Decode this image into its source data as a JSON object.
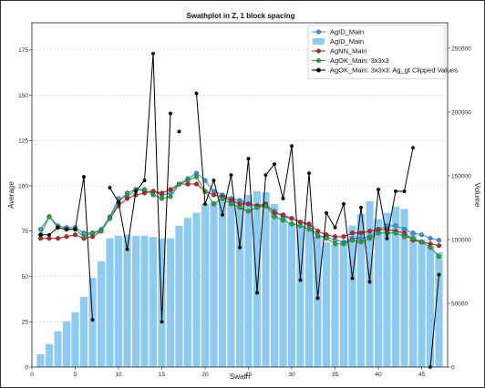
{
  "chart_data": {
    "type": "line",
    "title": "Swathplot in Z, 1 block spacing",
    "xlabel": "Swath",
    "ylabel": "Average",
    "y2label": "Volume",
    "xlim": [
      0,
      48
    ],
    "ylim": [
      0,
      190
    ],
    "y2lim": [
      0,
      270000
    ],
    "x_ticks": [
      0,
      5,
      10,
      15,
      20,
      25,
      30,
      35,
      40,
      45
    ],
    "y_ticks": [
      0,
      25,
      50,
      75,
      100,
      125,
      150,
      175
    ],
    "y2_ticks": [
      0,
      50000,
      100000,
      150000,
      200000,
      250000
    ],
    "grid": true,
    "legend_position": "top-right",
    "colors": {
      "agid_main": "#3b93d8",
      "agid_volume": "#8ecbf2",
      "agnn_main": "#b22b2b",
      "agok_main": "#2e9e3b",
      "agok_clipped": "#000000"
    },
    "series": [
      {
        "name": "AgID_Main",
        "kind": "line",
        "color": "#3b93d8",
        "x": [
          1,
          2,
          3,
          4,
          5,
          6,
          7,
          8,
          9,
          10,
          11,
          12,
          13,
          14,
          15,
          16,
          17,
          18,
          19,
          20,
          21,
          22,
          23,
          24,
          25,
          26,
          27,
          28,
          29,
          30,
          31,
          32,
          33,
          34,
          35,
          36,
          37,
          38,
          39,
          40,
          41,
          42,
          43,
          44,
          45,
          46,
          47
        ],
        "values": [
          76,
          83,
          78,
          77,
          77,
          74,
          74,
          76,
          83,
          93,
          94,
          98,
          97,
          97,
          95,
          96,
          101,
          104,
          107,
          103,
          97,
          95,
          93,
          92,
          90,
          89,
          89,
          86,
          83,
          82,
          80,
          78,
          72,
          72,
          70,
          69,
          71,
          71,
          72,
          76,
          78,
          78,
          76,
          74,
          73,
          71,
          70
        ]
      },
      {
        "name": "AgID_Main",
        "kind": "bar",
        "axis": "y2",
        "color": "#8ecbf2",
        "x": [
          1,
          2,
          3,
          4,
          5,
          6,
          7,
          8,
          9,
          10,
          11,
          12,
          13,
          14,
          15,
          16,
          17,
          18,
          19,
          20,
          21,
          22,
          23,
          24,
          25,
          26,
          27,
          28,
          29,
          30,
          31,
          32,
          33,
          34,
          35,
          36,
          37,
          38,
          39,
          40,
          41,
          42,
          43,
          44,
          45,
          46,
          47
        ],
        "values": [
          10000,
          18000,
          28000,
          36000,
          43000,
          55000,
          70000,
          83000,
          101000,
          103000,
          104000,
          103000,
          103000,
          102000,
          101000,
          101000,
          111000,
          117000,
          121000,
          128000,
          130000,
          135000,
          132000,
          131000,
          135000,
          138000,
          137000,
          128000,
          118000,
          113000,
          111000,
          108000,
          102000,
          98000,
          96000,
          99000,
          111000,
          120000,
          130000,
          116000,
          121000,
          126000,
          124000,
          105000,
          100000,
          95000,
          90000
        ]
      },
      {
        "name": "AgNN_Main",
        "kind": "line",
        "color": "#b22b2b",
        "x": [
          1,
          2,
          3,
          4,
          5,
          6,
          7,
          8,
          9,
          10,
          11,
          12,
          13,
          14,
          15,
          16,
          17,
          18,
          19,
          20,
          21,
          22,
          23,
          24,
          25,
          26,
          27,
          28,
          29,
          30,
          31,
          32,
          33,
          34,
          35,
          36,
          37,
          38,
          39,
          40,
          41,
          42,
          43,
          44,
          45,
          46,
          47
        ],
        "values": [
          71,
          71,
          71,
          72,
          73,
          71,
          72,
          75,
          82,
          89,
          93,
          95,
          96,
          97,
          96,
          98,
          101,
          101,
          101,
          97,
          95,
          94,
          92,
          90,
          90,
          89,
          90,
          85,
          84,
          82,
          80,
          79,
          75,
          73,
          72,
          72,
          74,
          74,
          75,
          76,
          76,
          75,
          74,
          70,
          69,
          68,
          67
        ]
      },
      {
        "name": "AgOK_Main: 3x3x3",
        "kind": "line",
        "color": "#2e9e3b",
        "x": [
          1,
          2,
          3,
          4,
          5,
          6,
          7,
          8,
          9,
          10,
          11,
          12,
          13,
          14,
          15,
          16,
          17,
          18,
          19,
          20,
          21,
          22,
          23,
          24,
          25,
          26,
          27,
          28,
          29,
          30,
          31,
          32,
          33,
          34,
          35,
          36,
          37,
          38,
          39,
          40,
          41,
          42,
          43,
          44,
          45,
          46,
          47
        ],
        "values": [
          73,
          83,
          77,
          76,
          76,
          72,
          74,
          75,
          82,
          91,
          96,
          98,
          98,
          95,
          93,
          94,
          101,
          103,
          105,
          97,
          90,
          93,
          90,
          88,
          86,
          88,
          89,
          83,
          81,
          79,
          78,
          76,
          73,
          71,
          68,
          68,
          70,
          69,
          71,
          74,
          74,
          74,
          72,
          71,
          69,
          66,
          61
        ]
      },
      {
        "name": "AgOK_Main: 3x3x3: Ag_gt Clipped Values",
        "kind": "line",
        "color": "#000000",
        "segments": [
          {
            "x": [
              1,
              2,
              3,
              4,
              5,
              6,
              7
            ],
            "values": [
              73,
              73,
              77,
              76,
              76,
              105,
              26
            ]
          },
          {
            "x": [
              9,
              10,
              11,
              12,
              13,
              14,
              15,
              16
            ],
            "values": [
              99,
              91,
              65,
              97,
              103,
              173,
              25,
              140
            ]
          },
          {
            "x": [
              17
            ],
            "values": [
              130
            ]
          },
          {
            "x": [
              19,
              20,
              21,
              22,
              23,
              24,
              25,
              26,
              27,
              28,
              29,
              30,
              31,
              32,
              33,
              34,
              35,
              36,
              37,
              38,
              39,
              40,
              41,
              42,
              43,
              44
            ],
            "values": [
              151,
              90,
              103,
              84,
              106,
              66,
              115,
              41,
              106,
              112,
              93,
              122,
              48,
              107,
              38,
              85,
              77,
              90,
              49,
              88,
              47,
              98,
              71,
              97,
              97,
              121
            ]
          },
          {
            "x": [
              46,
              47
            ],
            "values": [
              0,
              51
            ]
          }
        ]
      }
    ]
  }
}
